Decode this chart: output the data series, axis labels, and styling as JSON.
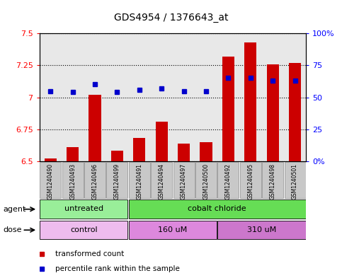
{
  "title": "GDS4954 / 1376643_at",
  "samples": [
    "GSM1240490",
    "GSM1240493",
    "GSM1240496",
    "GSM1240499",
    "GSM1240491",
    "GSM1240494",
    "GSM1240497",
    "GSM1240500",
    "GSM1240492",
    "GSM1240495",
    "GSM1240498",
    "GSM1240501"
  ],
  "red_values": [
    6.52,
    6.61,
    7.02,
    6.58,
    6.68,
    6.81,
    6.64,
    6.65,
    7.32,
    7.43,
    7.26,
    7.27
  ],
  "blue_values": [
    55,
    54,
    60,
    54,
    56,
    57,
    55,
    55,
    65,
    65,
    63,
    63
  ],
  "ylim_left": [
    6.5,
    7.5
  ],
  "ylim_right": [
    0,
    100
  ],
  "yticks_left": [
    6.5,
    6.75,
    7.0,
    7.25,
    7.5
  ],
  "ytick_labels_left": [
    "6.5",
    "6.75",
    "7",
    "7.25",
    "7.5"
  ],
  "ytick_labels_right": [
    "0%",
    "25",
    "50",
    "75",
    "100%"
  ],
  "ytick_vals_right": [
    0,
    25,
    50,
    75,
    100
  ],
  "agent_groups": [
    {
      "label": "untreated",
      "start": 0,
      "end": 4,
      "color": "#99EE99"
    },
    {
      "label": "cobalt chloride",
      "start": 4,
      "end": 12,
      "color": "#66DD55"
    }
  ],
  "dose_groups": [
    {
      "label": "control",
      "start": 0,
      "end": 4,
      "color": "#EEBCEE"
    },
    {
      "label": "160 uM",
      "start": 4,
      "end": 8,
      "color": "#DD88DD"
    },
    {
      "label": "310 uM",
      "start": 8,
      "end": 12,
      "color": "#CC77CC"
    }
  ],
  "bar_color": "#CC0000",
  "dot_color": "#0000CC",
  "bar_width": 0.55,
  "plot_bg": "#E8E8E8",
  "legend_red_label": "transformed count",
  "legend_blue_label": "percentile rank within the sample",
  "agent_label": "agent",
  "dose_label": "dose"
}
